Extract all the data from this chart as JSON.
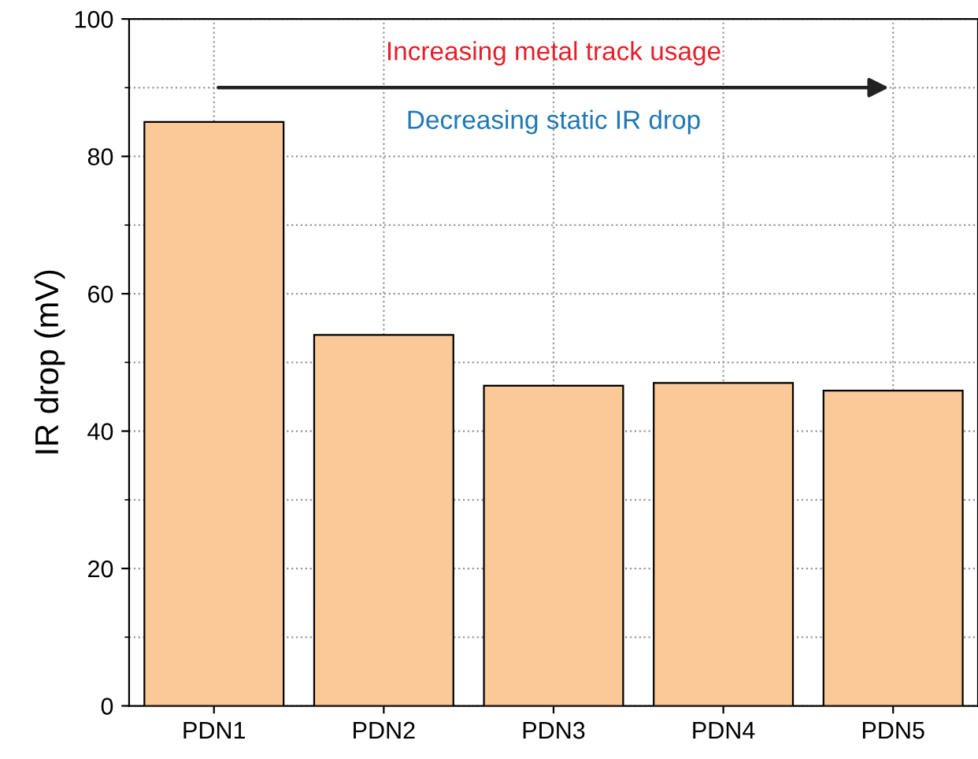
{
  "chart_data": {
    "type": "bar",
    "ylabel": "IR drop (mV)",
    "categories": [
      "PDN1",
      "PDN2",
      "PDN3",
      "PDN4",
      "PDN5"
    ],
    "values": [
      85,
      54,
      46.6,
      47,
      45.9
    ],
    "color": "#fbc897",
    "ylim": [
      0,
      100
    ],
    "yticks": [
      0,
      20,
      40,
      60,
      80,
      100
    ],
    "grid": true,
    "annotations": [
      "Increasing metal track usage",
      "Decreasing static IR drop"
    ]
  }
}
